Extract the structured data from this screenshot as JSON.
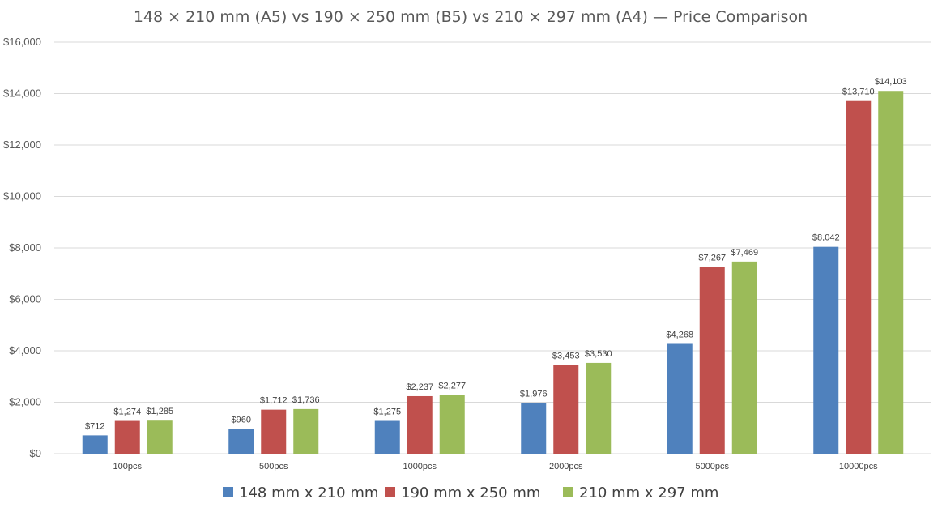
{
  "chart_data": {
    "type": "bar",
    "title": "148 × 210 mm (A5) vs 190 × 250 mm (B5) vs 210 × 297 mm (A4) — Price Comparison",
    "xlabel": "",
    "ylabel": "",
    "ylim": [
      0,
      16000
    ],
    "ytick_step": 2000,
    "ytick_labels": [
      "$0",
      "$2,000",
      "$4,000",
      "$6,000",
      "$8,000",
      "$10,000",
      "$12,000",
      "$14,000",
      "$16,000"
    ],
    "grid": true,
    "legend_position": "bottom",
    "categories": [
      "100pcs",
      "500pcs",
      "1000pcs",
      "2000pcs",
      "5000pcs",
      "10000pcs"
    ],
    "series": [
      {
        "name": "148 mm x 210 mm",
        "color": "#4f81bd",
        "values": [
          712,
          960,
          1275,
          1976,
          4268,
          8042
        ],
        "labels": [
          "$712",
          "$960",
          "$1,275",
          "$1,976",
          "$4,268",
          "$8,042"
        ]
      },
      {
        "name": "190 mm x 250 mm",
        "color": "#c0504d",
        "values": [
          1274,
          1712,
          2237,
          3453,
          7267,
          13710
        ],
        "labels": [
          "$1,274",
          "$1,712",
          "$2,237",
          "$3,453",
          "$7,267",
          "$13,710"
        ]
      },
      {
        "name": "210 mm x 297 mm",
        "color": "#9bbb59",
        "values": [
          1285,
          1736,
          2277,
          3530,
          7469,
          14103
        ],
        "labels": [
          "$1,285",
          "$1,736",
          "$2,277",
          "$3,530",
          "$7,469",
          "$14,103"
        ]
      }
    ]
  }
}
